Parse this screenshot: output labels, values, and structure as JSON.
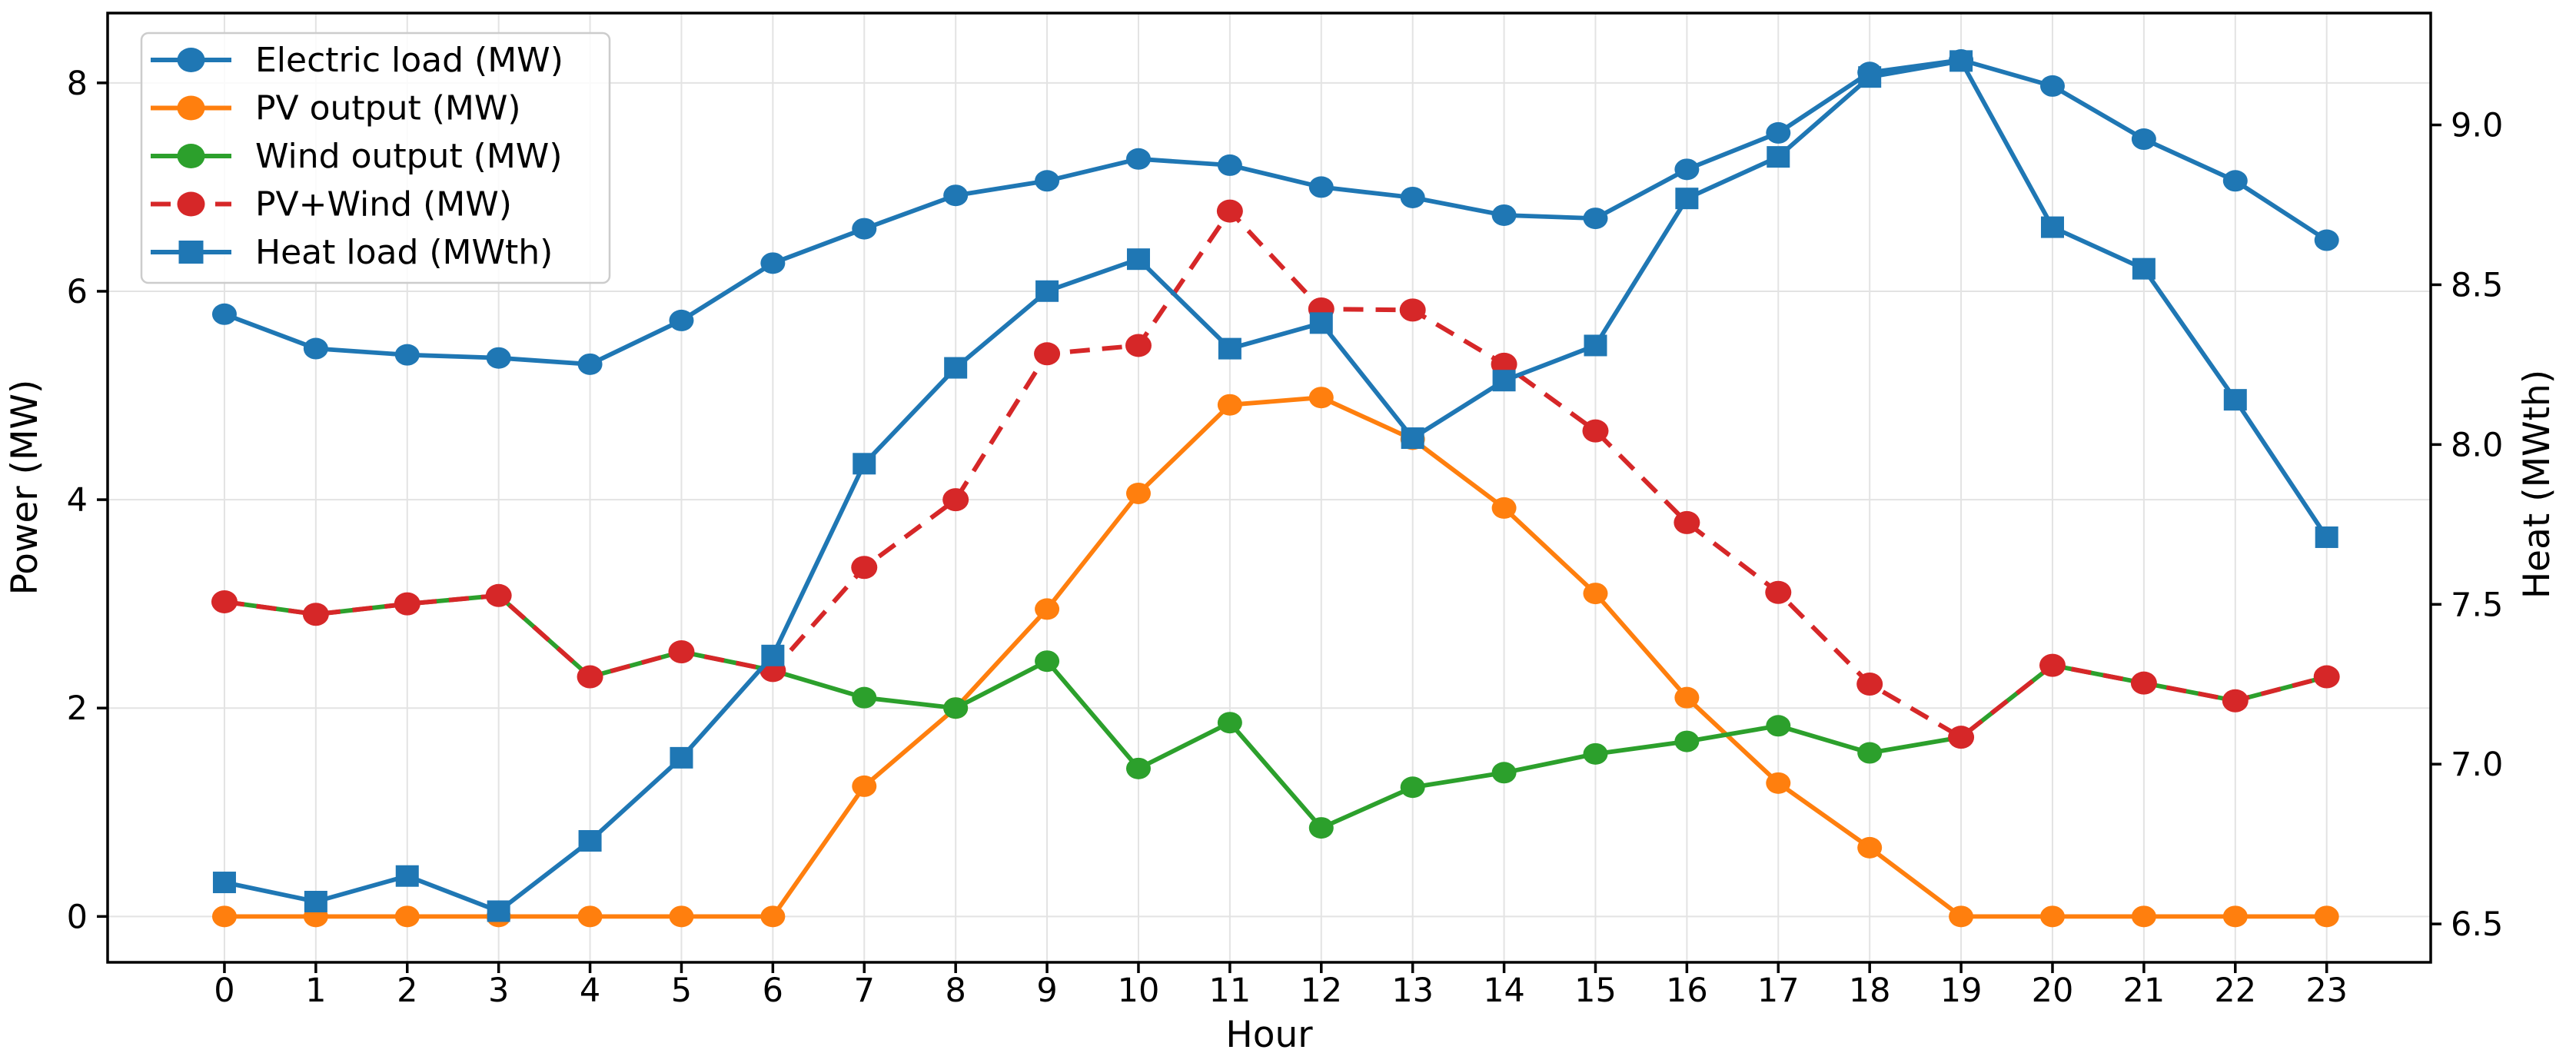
{
  "chart_data": {
    "type": "line",
    "title": "",
    "xlabel": "Hour",
    "ylabel_left": "Power (MW)",
    "ylabel_right": "Heat (MWth)",
    "x": [
      0,
      1,
      2,
      3,
      4,
      5,
      6,
      7,
      8,
      9,
      10,
      11,
      12,
      13,
      14,
      15,
      16,
      17,
      18,
      19,
      20,
      21,
      22,
      23
    ],
    "x_ticks": [
      0,
      1,
      2,
      3,
      4,
      5,
      6,
      7,
      8,
      9,
      10,
      11,
      12,
      13,
      14,
      15,
      16,
      17,
      18,
      19,
      20,
      21,
      22,
      23
    ],
    "left_axis": {
      "ticks": [
        0,
        2,
        4,
        6,
        8
      ],
      "lim": [
        -0.44,
        8.67
      ]
    },
    "right_axis": {
      "ticks": [
        6.5,
        7.0,
        7.5,
        8.0,
        8.5,
        9.0
      ],
      "lim": [
        6.38,
        9.35
      ]
    },
    "grid": true,
    "legend_position": "upper left",
    "series": [
      {
        "name": "Electric load (MW)",
        "axis": "left",
        "color": "#1f77b4",
        "marker": "circle",
        "linestyle": "solid",
        "values": [
          5.78,
          5.45,
          5.39,
          5.36,
          5.3,
          5.72,
          6.27,
          6.6,
          6.92,
          7.06,
          7.27,
          7.21,
          7.0,
          6.9,
          6.73,
          6.7,
          7.17,
          7.52,
          8.1,
          8.22,
          7.97,
          7.46,
          7.06,
          6.49
        ]
      },
      {
        "name": "PV output (MW)",
        "axis": "left",
        "color": "#ff7f0e",
        "marker": "circle",
        "linestyle": "solid",
        "values": [
          0,
          0,
          0,
          0,
          0,
          0,
          0,
          1.25,
          2.0,
          2.95,
          4.06,
          4.91,
          4.98,
          4.58,
          3.92,
          3.1,
          2.1,
          1.28,
          0.66,
          0,
          0,
          0,
          0,
          0
        ]
      },
      {
        "name": "Wind output (MW)",
        "axis": "left",
        "color": "#2ca02c",
        "marker": "circle",
        "linestyle": "solid",
        "values": [
          3.02,
          2.9,
          3.0,
          3.08,
          2.3,
          2.54,
          2.36,
          2.1,
          2.0,
          2.45,
          1.42,
          1.86,
          0.85,
          1.24,
          1.38,
          1.56,
          1.68,
          1.83,
          1.57,
          1.72,
          2.41,
          2.24,
          2.07,
          2.3
        ]
      },
      {
        "name": "PV+Wind (MW)",
        "axis": "left",
        "color": "#d62728",
        "marker": "circle",
        "linestyle": "dashed",
        "values": [
          3.02,
          2.9,
          3.0,
          3.08,
          2.3,
          2.54,
          2.36,
          3.35,
          4.0,
          5.4,
          5.48,
          6.77,
          5.83,
          5.82,
          5.3,
          4.66,
          3.78,
          3.11,
          2.23,
          1.72,
          2.41,
          2.24,
          2.07,
          2.3
        ]
      },
      {
        "name": "Heat load (MWth)",
        "axis": "right",
        "color": "#1f77b4",
        "marker": "square",
        "linestyle": "solid",
        "values": [
          6.63,
          6.57,
          6.65,
          6.54,
          6.76,
          7.02,
          7.34,
          7.94,
          8.24,
          8.48,
          8.58,
          8.3,
          8.38,
          8.02,
          8.2,
          8.31,
          8.77,
          8.9,
          9.15,
          9.2,
          8.68,
          8.55,
          8.14,
          7.71
        ]
      }
    ]
  },
  "colors": {
    "blue": "#1f77b4",
    "orange": "#ff7f0e",
    "green": "#2ca02c",
    "red": "#d62728",
    "grid": "#e3e3e3",
    "spine": "#000000",
    "legend_border": "#cccccc",
    "background": "#ffffff"
  }
}
